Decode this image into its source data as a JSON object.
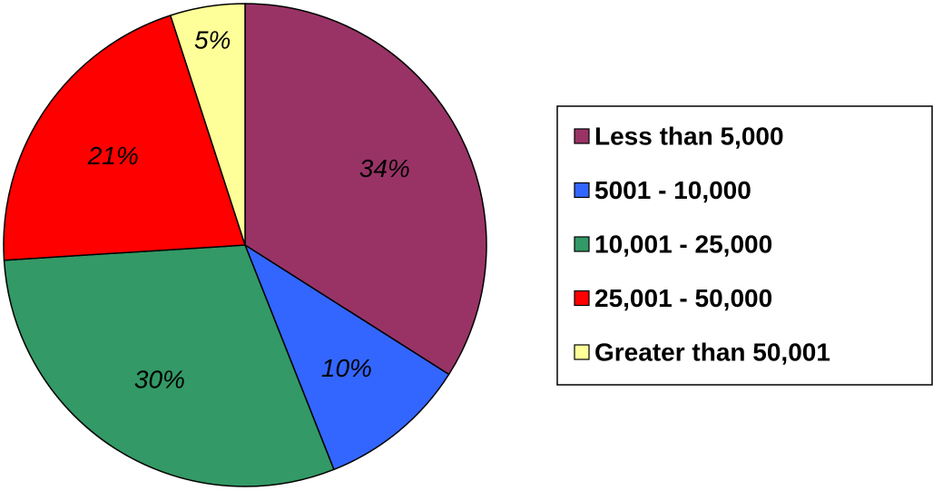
{
  "chart_data": {
    "type": "pie",
    "start_angle_deg": 0,
    "direction": "clockwise",
    "legend_position": "right",
    "slices": [
      {
        "label": "Less than 5,000",
        "value": 34,
        "value_label": "34%",
        "color": "#993366"
      },
      {
        "label": "5001 - 10,000",
        "value": 10,
        "value_label": "10%",
        "color": "#3366FF"
      },
      {
        "label": "10,001 - 25,000",
        "value": 30,
        "value_label": "30%",
        "color": "#339966"
      },
      {
        "label": "25,001 - 50,000",
        "value": 21,
        "value_label": "21%",
        "color": "#FF0000"
      },
      {
        "label": "Greater than 50,001",
        "value": 5,
        "value_label": "5%",
        "color": "#FFFF99"
      }
    ]
  }
}
